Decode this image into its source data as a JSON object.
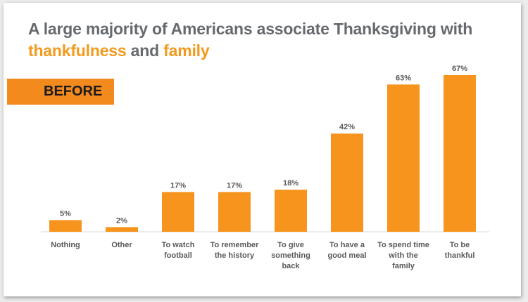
{
  "title": {
    "prefix": "A large majority of Americans associate Thanksgiving with",
    "accent1": "thankfulness",
    "connector": " and ",
    "accent2": "family"
  },
  "badge": "BEFORE",
  "colors": {
    "bar": "#f7941d",
    "title": "#666a6e",
    "accent": "#f39a1e",
    "badge": "#f38a1e"
  },
  "chart_data": {
    "type": "bar",
    "categories": [
      [
        "Nothing"
      ],
      [
        "Other"
      ],
      [
        "To watch",
        "football"
      ],
      [
        "To remember",
        "the history"
      ],
      [
        "To give",
        "something",
        "back"
      ],
      [
        "To have a",
        "good meal"
      ],
      [
        "To spend time",
        "with the",
        "family"
      ],
      [
        "To be",
        "thankful"
      ]
    ],
    "values": [
      5,
      2,
      17,
      17,
      18,
      42,
      63,
      67
    ],
    "value_labels": [
      "5%",
      "2%",
      "17%",
      "17%",
      "18%",
      "42%",
      "63%",
      "67%"
    ],
    "unit": "%",
    "ylim": [
      0,
      67
    ],
    "grid": false,
    "legend": "none"
  }
}
